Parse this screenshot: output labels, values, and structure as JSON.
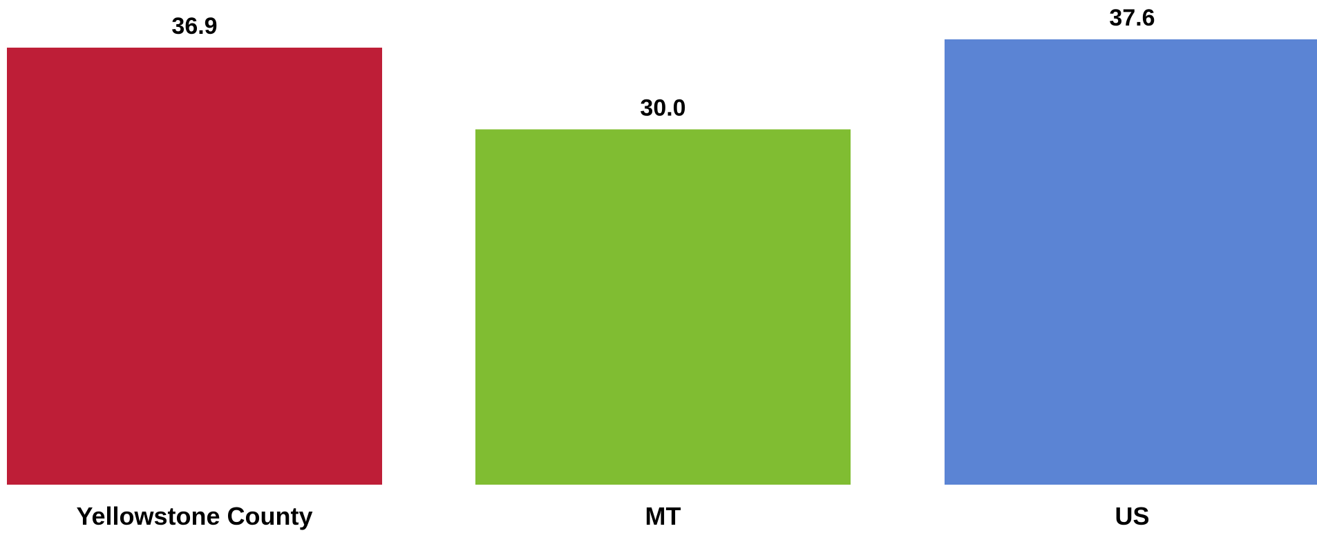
{
  "chart_data": {
    "type": "bar",
    "categories": [
      "Yellowstone County",
      "MT",
      "US"
    ],
    "values": [
      36.9,
      30.0,
      37.6
    ],
    "value_labels": [
      "36.9",
      "30.0",
      "37.6"
    ],
    "colors": [
      "#be1e37",
      "#80bd32",
      "#5b84d4"
    ],
    "title": "",
    "xlabel": "",
    "ylabel": "",
    "ylim": [
      0,
      37.6
    ],
    "grid": false,
    "legend": "none"
  }
}
